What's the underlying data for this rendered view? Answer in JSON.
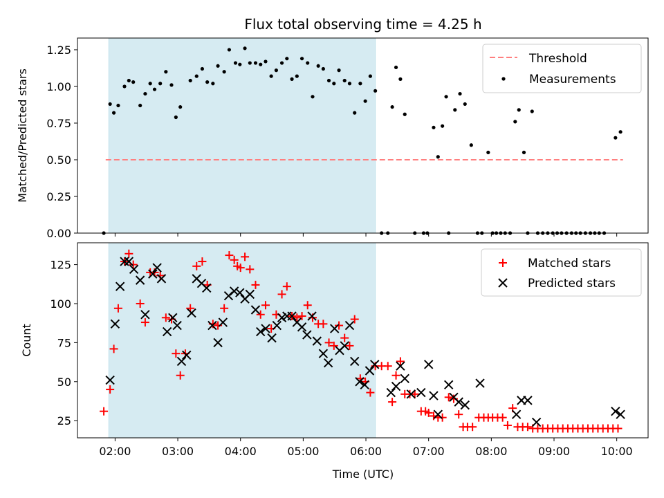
{
  "chart_data": [
    {
      "type": "scatter",
      "title": "Flux total observing time = 4.25 h",
      "xlabel": "",
      "ylabel": "Matched/Predicted stars",
      "xlim": [
        1.4,
        10.5
      ],
      "ylim": [
        0,
        1.33
      ],
      "yticks": [
        0.0,
        0.25,
        0.5,
        0.75,
        1.0,
        1.25
      ],
      "ytick_labels": [
        "0.00",
        "0.25",
        "0.50",
        "0.75",
        "1.00",
        "1.25"
      ],
      "shaded_interval": [
        1.9,
        6.15
      ],
      "threshold": {
        "name": "Threshold",
        "y": 0.5,
        "x": [
          1.85,
          10.1
        ],
        "color": "#ff7f7f"
      },
      "legend_position": "top-right",
      "series": [
        {
          "name": "Measurements",
          "color": "#000000",
          "marker": "dot",
          "x": [
            1.82,
            1.92,
            1.98,
            2.05,
            2.15,
            2.22,
            2.29,
            2.4,
            2.48,
            2.56,
            2.63,
            2.72,
            2.81,
            2.9,
            2.97,
            3.04,
            3.2,
            3.3,
            3.39,
            3.47,
            3.56,
            3.64,
            3.74,
            3.82,
            3.92,
            3.99,
            4.07,
            4.15,
            4.24,
            4.32,
            4.4,
            4.49,
            4.57,
            4.66,
            4.74,
            4.82,
            4.9,
            4.98,
            5.07,
            5.15,
            5.24,
            5.32,
            5.41,
            5.49,
            5.57,
            5.66,
            5.74,
            5.82,
            5.91,
            5.99,
            6.07,
            6.15,
            6.25,
            6.35,
            6.42,
            6.48,
            6.55,
            6.62,
            6.78,
            6.92,
            6.98,
            7.08,
            7.15,
            7.22,
            7.28,
            7.32,
            7.42,
            7.5,
            7.58,
            7.68,
            7.78,
            7.85,
            7.95,
            8.02,
            8.08,
            8.15,
            8.22,
            8.3,
            8.38,
            8.44,
            8.52,
            8.58,
            8.65,
            8.74,
            8.82,
            8.9,
            8.98,
            9.05,
            9.12,
            9.2,
            9.28,
            9.35,
            9.42,
            9.5,
            9.58,
            9.65,
            9.72,
            9.8,
            9.98,
            10.06
          ],
          "y": [
            0.0,
            0.88,
            0.82,
            0.87,
            1.0,
            1.04,
            1.03,
            0.87,
            0.95,
            1.02,
            0.98,
            1.02,
            1.1,
            1.01,
            0.79,
            0.86,
            1.04,
            1.07,
            1.12,
            1.03,
            1.02,
            1.14,
            1.1,
            1.25,
            1.16,
            1.15,
            1.26,
            1.16,
            1.16,
            1.15,
            1.17,
            1.07,
            1.11,
            1.16,
            1.19,
            1.05,
            1.07,
            1.19,
            1.16,
            0.93,
            1.14,
            1.12,
            1.04,
            1.02,
            1.11,
            1.04,
            1.02,
            0.82,
            1.02,
            0.9,
            1.07,
            0.97,
            0.0,
            0.0,
            0.86,
            1.13,
            1.05,
            0.81,
            0.0,
            0.0,
            0.0,
            0.72,
            0.52,
            0.73,
            0.93,
            0.0,
            0.84,
            0.95,
            0.88,
            0.6,
            0.0,
            0.0,
            0.55,
            0.0,
            0.0,
            0.0,
            0.0,
            0.0,
            0.76,
            0.84,
            0.55,
            0.0,
            0.83,
            0.0,
            0.0,
            0.0,
            0.0,
            0.0,
            0.0,
            0.0,
            0.0,
            0.0,
            0.0,
            0.0,
            0.0,
            0.0,
            0.0,
            0.0,
            0.65,
            0.69
          ]
        }
      ]
    },
    {
      "type": "scatter",
      "title": "",
      "xlabel": "Time (UTC)",
      "ylabel": "Count",
      "xlim": [
        1.4,
        10.5
      ],
      "ylim": [
        14,
        139
      ],
      "xticks": [
        2,
        3,
        4,
        5,
        6,
        7,
        8,
        9,
        10
      ],
      "xtick_labels": [
        "02:00",
        "03:00",
        "04:00",
        "05:00",
        "06:00",
        "07:00",
        "08:00",
        "09:00",
        "10:00"
      ],
      "yticks": [
        25,
        50,
        75,
        100,
        125
      ],
      "ytick_labels": [
        "25",
        "50",
        "75",
        "100",
        "125"
      ],
      "shaded_interval": [
        1.9,
        6.15
      ],
      "legend_position": "top-right",
      "series": [
        {
          "name": "Matched stars",
          "color": "#ff0000",
          "marker": "plus",
          "x": [
            1.82,
            1.92,
            1.98,
            2.05,
            2.15,
            2.22,
            2.29,
            2.4,
            2.48,
            2.56,
            2.63,
            2.72,
            2.81,
            2.9,
            2.97,
            3.04,
            3.12,
            3.2,
            3.3,
            3.39,
            3.47,
            3.56,
            3.64,
            3.74,
            3.82,
            3.9,
            3.95,
            4.0,
            4.07,
            4.15,
            4.24,
            4.32,
            4.4,
            4.49,
            4.57,
            4.66,
            4.74,
            4.82,
            4.9,
            4.98,
            5.07,
            5.15,
            5.24,
            5.32,
            5.41,
            5.49,
            5.57,
            5.66,
            5.74,
            5.82,
            5.91,
            5.99,
            6.07,
            6.15,
            6.25,
            6.35,
            6.42,
            6.48,
            6.55,
            6.62,
            6.7,
            6.78,
            6.88,
            6.95,
            7.0,
            7.08,
            7.15,
            7.22,
            7.32,
            7.4,
            7.48,
            7.55,
            7.62,
            7.7,
            7.8,
            7.88,
            7.95,
            8.02,
            8.1,
            8.18,
            8.26,
            8.34,
            8.42,
            8.5,
            8.58,
            8.66,
            8.74,
            8.82,
            8.9,
            8.98,
            9.06,
            9.14,
            9.22,
            9.3,
            9.38,
            9.46,
            9.54,
            9.62,
            9.7,
            9.78,
            9.86,
            9.94,
            10.02
          ],
          "y": [
            31,
            45,
            71,
            97,
            127,
            132,
            125,
            100,
            88,
            120,
            120,
            118,
            91,
            90,
            68,
            54,
            68,
            97,
            124,
            127,
            112,
            87,
            86,
            97,
            131,
            128,
            124,
            123,
            130,
            122,
            112,
            93,
            99,
            84,
            93,
            106,
            111,
            92,
            91,
            92,
            99,
            91,
            87,
            87,
            75,
            73,
            86,
            78,
            73,
            90,
            52,
            50,
            43,
            60,
            60,
            60,
            37,
            54,
            63,
            42,
            42,
            42,
            31,
            31,
            30,
            28,
            27,
            27,
            40,
            39,
            29,
            21,
            21,
            21,
            27,
            27,
            27,
            27,
            27,
            27,
            22,
            33,
            21,
            21,
            21,
            20,
            20,
            20,
            20,
            20,
            20,
            20,
            20,
            20,
            20,
            20,
            20,
            20,
            20,
            20,
            20,
            20,
            20
          ]
        },
        {
          "name": "Predicted stars",
          "color": "#000000",
          "marker": "x",
          "x": [
            1.92,
            2.0,
            2.08,
            2.15,
            2.22,
            2.3,
            2.4,
            2.48,
            2.6,
            2.67,
            2.74,
            2.83,
            2.92,
            2.99,
            3.06,
            3.14,
            3.22,
            3.3,
            3.38,
            3.46,
            3.55,
            3.64,
            3.72,
            3.81,
            3.9,
            3.99,
            4.07,
            4.15,
            4.24,
            4.32,
            4.4,
            4.5,
            4.58,
            4.66,
            4.74,
            4.82,
            4.9,
            4.98,
            5.06,
            5.14,
            5.22,
            5.32,
            5.4,
            5.5,
            5.58,
            5.66,
            5.74,
            5.82,
            5.9,
            5.98,
            6.06,
            6.14,
            6.4,
            6.48,
            6.55,
            6.62,
            6.72,
            6.88,
            7.0,
            7.08,
            7.15,
            7.32,
            7.4,
            7.48,
            7.58,
            7.82,
            8.4,
            8.48,
            8.58,
            8.72,
            9.98,
            10.06
          ],
          "y": [
            51,
            87,
            111,
            127,
            127,
            122,
            115,
            93,
            119,
            123,
            116,
            82,
            91,
            86,
            63,
            67,
            94,
            116,
            113,
            110,
            86,
            75,
            88,
            105,
            108,
            107,
            103,
            106,
            96,
            82,
            84,
            78,
            86,
            91,
            92,
            92,
            88,
            85,
            80,
            92,
            76,
            68,
            62,
            84,
            70,
            73,
            86,
            63,
            50,
            48,
            57,
            61,
            43,
            47,
            60,
            52,
            42,
            43,
            61,
            41,
            29,
            48,
            40,
            37,
            35,
            49,
            29,
            38,
            38,
            24,
            31,
            29
          ]
        }
      ]
    }
  ]
}
